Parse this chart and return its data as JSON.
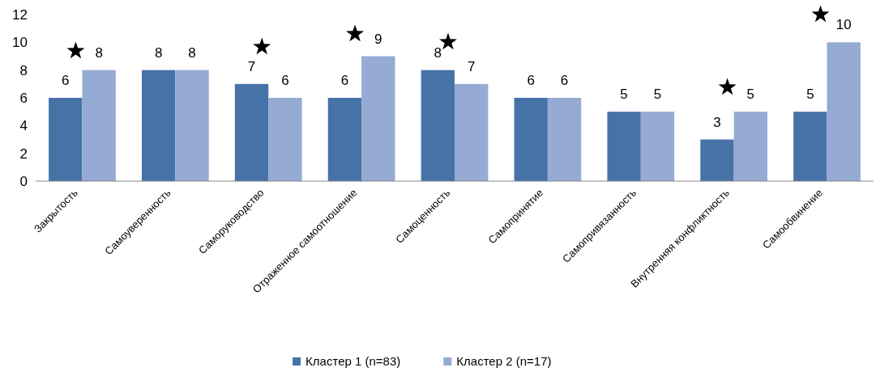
{
  "chart_data": {
    "type": "bar",
    "categories": [
      "Закрытость",
      "Самоуверенность",
      "Саморуководство",
      "Отраженное самоотношение",
      "Самоценность",
      "Самопринятие",
      "Самопривязанность",
      "Внутренняя конфликтность",
      "Самообвинение"
    ],
    "series": [
      {
        "name": "Кластер 1  (n=83)",
        "color": "#4672a8",
        "values": [
          6,
          8,
          7,
          6,
          8,
          6,
          5,
          3,
          5
        ]
      },
      {
        "name": "Кластер 2 (n=17)",
        "color": "#95abd3",
        "values": [
          8,
          8,
          6,
          9,
          7,
          6,
          5,
          5,
          10
        ]
      }
    ],
    "ylim": [
      0,
      12
    ],
    "yticks": [
      0,
      2,
      4,
      6,
      8,
      10,
      12
    ],
    "data_labels": true,
    "legend": "bottom",
    "grid": false
  }
}
